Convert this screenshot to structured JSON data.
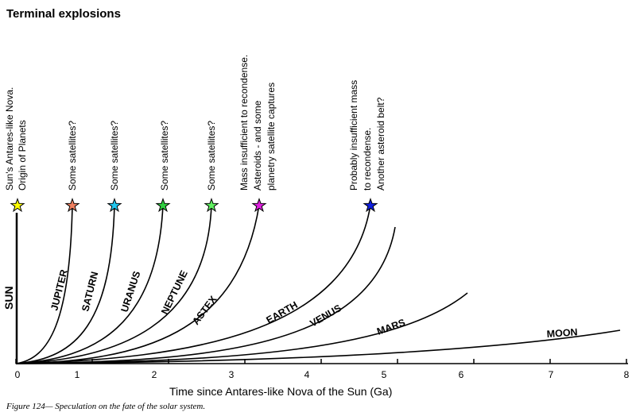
{
  "title": "Terminal explosions",
  "sun_label": "SUN",
  "xlabel": "Time since Antares-like Nova of the Sun (Ga)",
  "caption": "Figure 124— Speculation on the fate of the solar system.",
  "x_ticks": [
    "0",
    "1",
    "2",
    "3",
    "4",
    "5",
    "6",
    "7",
    "8"
  ],
  "annotations": [
    {
      "lines": [
        "Sun's Antares-like Nova.",
        "Origin of Planets"
      ]
    },
    {
      "lines": [
        "Some satellites?"
      ]
    },
    {
      "lines": [
        "Some satellites?"
      ]
    },
    {
      "lines": [
        "Some satellites?"
      ]
    },
    {
      "lines": [
        "Some satellites?"
      ]
    },
    {
      "lines": [
        "Mass insufficient to recondense.",
        "Asteroids - and some",
        "planetry satellite captures"
      ]
    },
    {
      "lines": [
        "Probably insufficient mass",
        "to recondense.",
        "Another asteroid belt?"
      ]
    }
  ],
  "stars": [
    {
      "color": "#ffff00"
    },
    {
      "color": "#f08060"
    },
    {
      "color": "#20c8f0"
    },
    {
      "color": "#30d040"
    },
    {
      "color": "#60f060"
    },
    {
      "color": "#e020e0"
    },
    {
      "color": "#1020e0"
    }
  ],
  "planets": [
    "JUPITER",
    "SATURN",
    "URANUS",
    "NEPTUNE",
    "ASTEX",
    "EARTH",
    "VENUS",
    "MARS",
    "MOON"
  ],
  "chart_data": {
    "type": "line",
    "title": "Terminal explosions",
    "xlabel": "Time since Antares-like Nova of the Sun (Ga)",
    "ylabel": "SUN",
    "xlim": [
      0,
      8
    ],
    "x_ticks": [
      0,
      1,
      2,
      3,
      4,
      5,
      6,
      7,
      8
    ],
    "series": [
      {
        "name": "JUPITER",
        "end_time": 0.75
      },
      {
        "name": "SATURN",
        "end_time": 1.3
      },
      {
        "name": "URANUS",
        "end_time": 1.9
      },
      {
        "name": "NEPTUNE",
        "end_time": 2.5
      },
      {
        "name": "ASTEX",
        "end_time": 3.2
      },
      {
        "name": "EARTH",
        "end_time": 4.7
      },
      {
        "name": "VENUS",
        "end_time": 5.0
      },
      {
        "name": "MARS",
        "end_time": 5.9
      },
      {
        "name": "MOON",
        "end_time": 7.9
      }
    ]
  }
}
